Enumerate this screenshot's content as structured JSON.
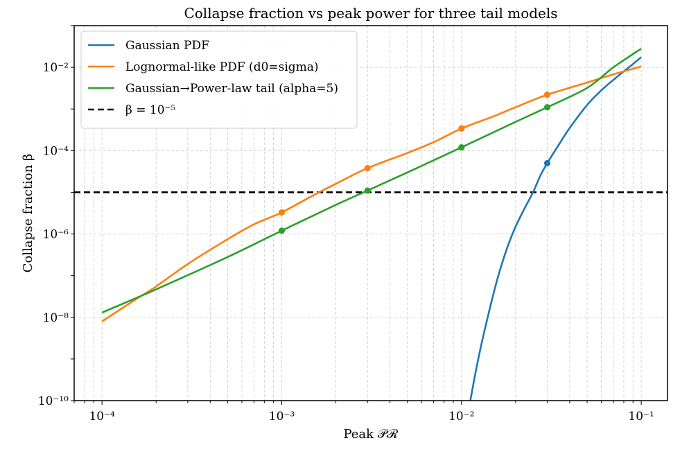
{
  "chart_data": {
    "type": "line",
    "title": "Collapse fraction vs peak power for three tail models",
    "xlabel": "Peak 𝒫ℛ",
    "ylabel": "Collapse fraction β",
    "x_scale": "log",
    "y_scale": "log",
    "xlim": [
      7e-05,
      0.14
    ],
    "ylim": [
      1e-10,
      0.1
    ],
    "grid": true,
    "legend_position": "top-left",
    "x_ticks": [
      {
        "value": 0.0001,
        "label": "10⁻⁴"
      },
      {
        "value": 0.001,
        "label": "10⁻³"
      },
      {
        "value": 0.01,
        "label": "10⁻²"
      },
      {
        "value": 0.1,
        "label": "10⁻¹"
      }
    ],
    "y_ticks": [
      {
        "value": 1e-10,
        "label": "10⁻¹⁰"
      },
      {
        "value": 1e-08,
        "label": "10⁻⁸"
      },
      {
        "value": 1e-06,
        "label": "10⁻⁶"
      },
      {
        "value": 0.0001,
        "label": "10⁻⁴"
      },
      {
        "value": 0.01,
        "label": "10⁻²"
      }
    ],
    "series": [
      {
        "name": "Gaussian PDF",
        "color": "#1f77b4",
        "style": "solid",
        "x": [
          0.0112,
          0.012,
          0.013,
          0.0145,
          0.016,
          0.018,
          0.02,
          0.0225,
          0.025,
          0.0275,
          0.03,
          0.035,
          0.04,
          0.05,
          0.06,
          0.07,
          0.08,
          0.09,
          0.1
        ],
        "y": [
          1e-10,
          5e-10,
          2.6e-09,
          1.9e-08,
          9.7e-08,
          4.8e-07,
          1.5e-06,
          4.2e-06,
          1e-05,
          2.55e-05,
          5e-05,
          0.000145,
          0.00035,
          0.00125,
          0.0028,
          0.005,
          0.008,
          0.012,
          0.0175
        ],
        "markers": [
          {
            "x": 0.03,
            "y": 5e-05
          }
        ]
      },
      {
        "name": "Lognormal-like PDF (d0=sigma)",
        "color": "#ff7f0e",
        "style": "solid",
        "x": [
          0.0001,
          0.00015,
          0.0002,
          0.0003,
          0.0005,
          0.0007,
          0.001,
          0.0015,
          0.002,
          0.003,
          0.005,
          0.007,
          0.01,
          0.015,
          0.02,
          0.03,
          0.05,
          0.07,
          0.1
        ],
        "y": [
          8e-09,
          2.5e-08,
          5.5e-08,
          1.9e-07,
          7.5e-07,
          1.7e-06,
          3.3e-06,
          8.5e-06,
          1.6e-05,
          3.8e-05,
          8.8e-05,
          0.00016,
          0.00034,
          0.00066,
          0.0011,
          0.0022,
          0.0043,
          0.0068,
          0.0105
        ],
        "markers": [
          {
            "x": 0.001,
            "y": 3.3e-06
          },
          {
            "x": 0.003,
            "y": 3.8e-05
          },
          {
            "x": 0.01,
            "y": 0.00034
          },
          {
            "x": 0.03,
            "y": 0.0022
          }
        ]
      },
      {
        "name": "Gaussian→Power-law tail (alpha=5)",
        "color": "#2ca02c",
        "style": "solid",
        "x": [
          0.0001,
          0.0002,
          0.0005,
          0.001,
          0.002,
          0.003,
          0.005,
          0.01,
          0.02,
          0.03,
          0.05,
          0.07,
          0.1
        ],
        "y": [
          1.3e-08,
          4.7e-08,
          2.8e-07,
          1.2e-06,
          5e-06,
          1.1e-05,
          3e-05,
          0.00012,
          0.00049,
          0.0011,
          0.0032,
          0.01,
          0.028
        ],
        "markers": [
          {
            "x": 0.001,
            "y": 1.2e-06
          },
          {
            "x": 0.003,
            "y": 1.1e-05
          },
          {
            "x": 0.01,
            "y": 0.00012
          },
          {
            "x": 0.03,
            "y": 0.0011
          }
        ]
      }
    ],
    "hlines": [
      {
        "name": "β = 10⁻⁵",
        "value": 1e-05,
        "color": "#000000",
        "style": "dashed"
      }
    ]
  }
}
